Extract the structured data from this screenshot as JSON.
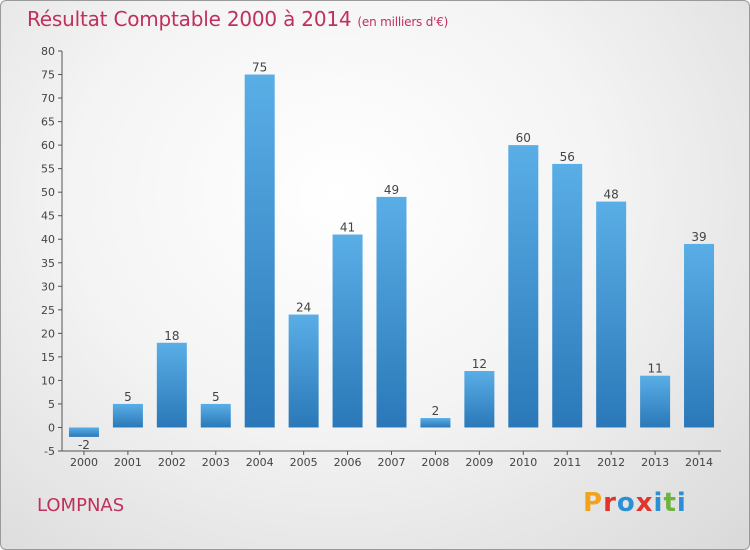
{
  "title": "Résultat Comptable 2000 à 2014",
  "subtitle": "(en milliers d'€)",
  "commune": "LOMPNAS",
  "brand": "Proxiti",
  "colors": {
    "title": "#c0305c",
    "bar_top": "#5aaee6",
    "bar_bottom": "#2a78b8"
  },
  "chart_data": {
    "type": "bar",
    "categories": [
      "2000",
      "2001",
      "2002",
      "2003",
      "2004",
      "2005",
      "2006",
      "2007",
      "2008",
      "2009",
      "2010",
      "2011",
      "2012",
      "2013",
      "2014"
    ],
    "values": [
      -2,
      5,
      18,
      5,
      75,
      24,
      41,
      49,
      2,
      12,
      60,
      56,
      48,
      11,
      39
    ],
    "ylim": [
      -5,
      80
    ],
    "yticks": [
      -5,
      0,
      5,
      10,
      15,
      20,
      25,
      30,
      35,
      40,
      45,
      50,
      55,
      60,
      65,
      70,
      75,
      80
    ],
    "grid": false,
    "xlabel": "",
    "ylabel": ""
  }
}
